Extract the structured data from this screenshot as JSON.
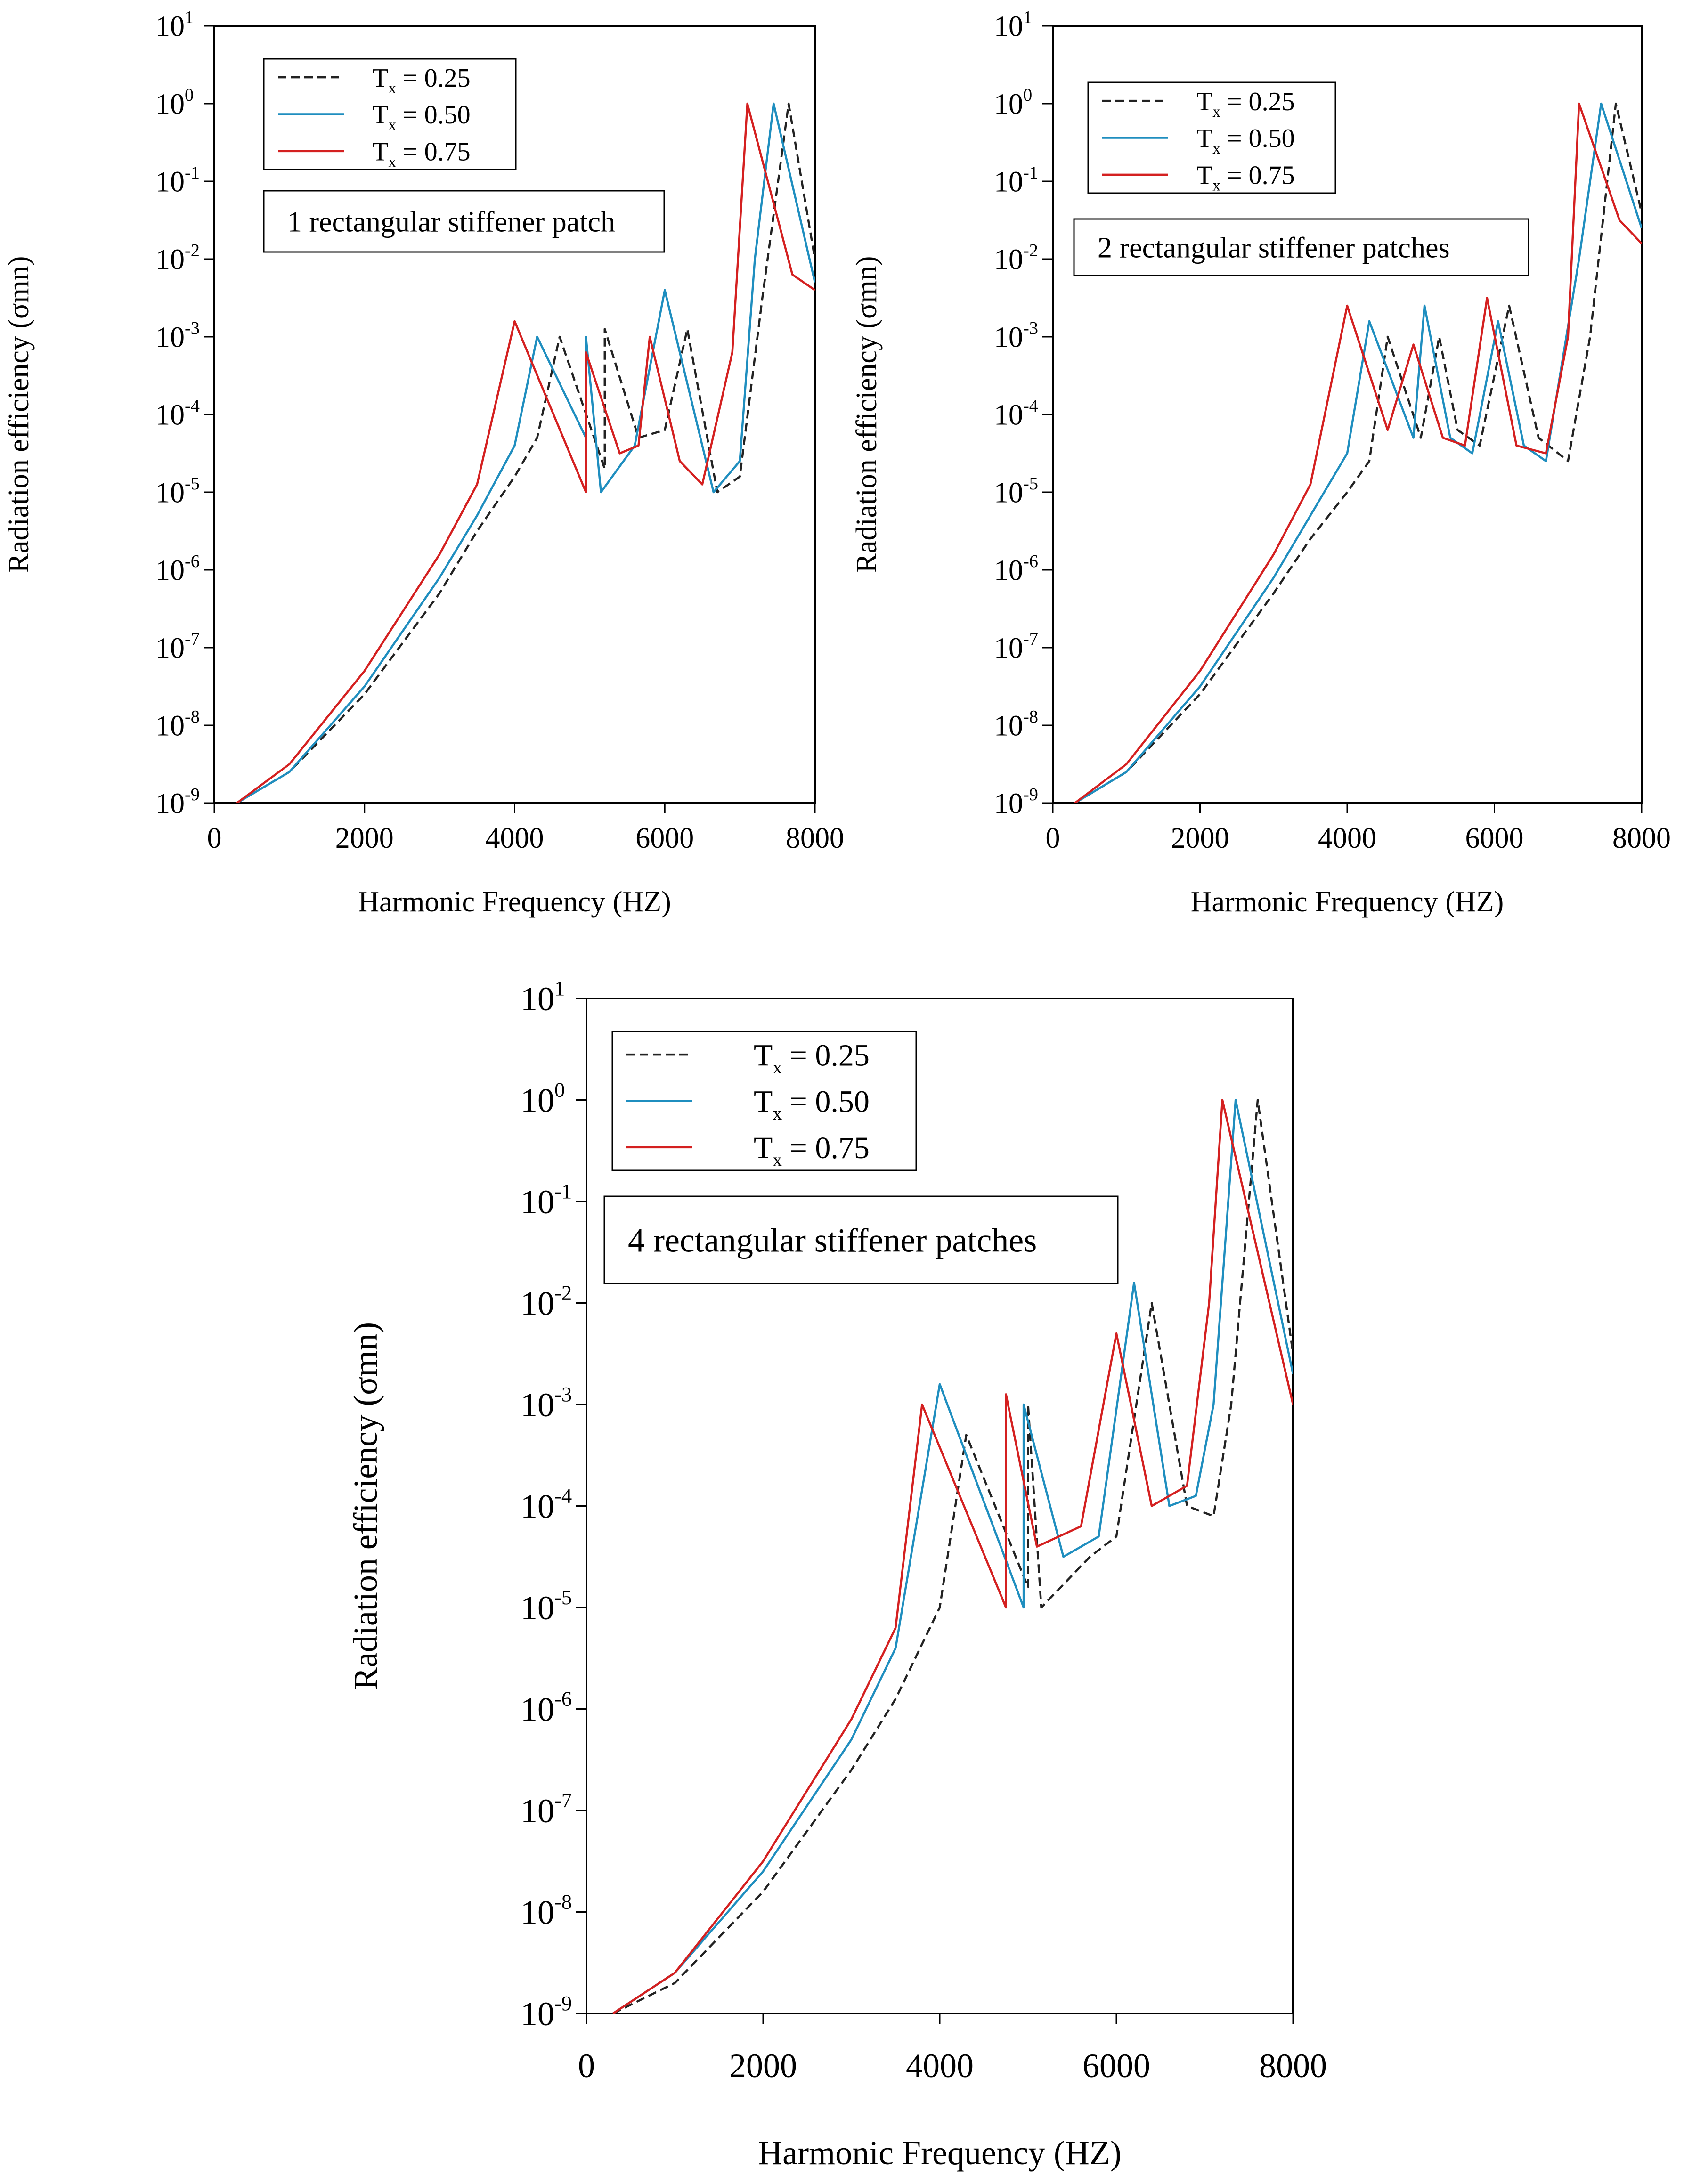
{
  "chart_data": [
    {
      "type": "line",
      "panel": "top-left",
      "annotation": "1 rectangular stiffener patch",
      "xlabel": "Harmonic Frequency (HZ)",
      "ylabel": "Radiation efficiency (σmn)",
      "xlim": [
        0,
        8000
      ],
      "ylim_exp": [
        -9,
        1
      ],
      "yscale": "log10",
      "x_ticks": [
        "0",
        "2000",
        "4000",
        "6000",
        "8000"
      ],
      "y_tick_exps": [
        1,
        0,
        -1,
        -2,
        -3,
        -4,
        -5,
        -6,
        -7,
        -8,
        -9
      ],
      "legend_position": "top-left",
      "series": [
        {
          "name": "Tx = 0.25",
          "label_prefix": "T",
          "label_sub": "x",
          "label_suffix": " = 0.25",
          "color": "#222222",
          "dash": true,
          "points": [
            [
              300,
              -9
            ],
            [
              1000,
              -8.6
            ],
            [
              2000,
              -7.6
            ],
            [
              3000,
              -6.3
            ],
            [
              3500,
              -5.5
            ],
            [
              4000,
              -4.8
            ],
            [
              4300,
              -4.3
            ],
            [
              4600,
              -3.0
            ],
            [
              5200,
              -4.7
            ],
            [
              5200,
              -2.9
            ],
            [
              5650,
              -4.3
            ],
            [
              6000,
              -4.2
            ],
            [
              6300,
              -2.9
            ],
            [
              6700,
              -5.0
            ],
            [
              7000,
              -4.8
            ],
            [
              7300,
              -2.5
            ],
            [
              7650,
              0
            ],
            [
              8000,
              -2.0
            ]
          ]
        },
        {
          "name": "Tx = 0.50",
          "label_prefix": "T",
          "label_sub": "x",
          "label_suffix": " = 0.50",
          "color": "#1f8ebf",
          "dash": false,
          "points": [
            [
              300,
              -9
            ],
            [
              1000,
              -8.6
            ],
            [
              2000,
              -7.5
            ],
            [
              3000,
              -6.1
            ],
            [
              3500,
              -5.3
            ],
            [
              4000,
              -4.4
            ],
            [
              4300,
              -3.0
            ],
            [
              4950,
              -4.3
            ],
            [
              4950,
              -3.0
            ],
            [
              5150,
              -5.0
            ],
            [
              5600,
              -4.4
            ],
            [
              6000,
              -2.4
            ],
            [
              6650,
              -5.0
            ],
            [
              7000,
              -4.6
            ],
            [
              7200,
              -2.0
            ],
            [
              7450,
              0
            ],
            [
              8000,
              -2.3
            ]
          ]
        },
        {
          "name": "Tx = 0.75",
          "label_prefix": "T",
          "label_sub": "x",
          "label_suffix": " = 0.75",
          "color": "#d42020",
          "dash": false,
          "points": [
            [
              300,
              -9
            ],
            [
              1000,
              -8.5
            ],
            [
              2000,
              -7.3
            ],
            [
              3000,
              -5.8
            ],
            [
              3500,
              -4.9
            ],
            [
              4000,
              -2.8
            ],
            [
              4950,
              -5.0
            ],
            [
              4950,
              -3.2
            ],
            [
              5400,
              -4.5
            ],
            [
              5650,
              -4.4
            ],
            [
              5800,
              -3.0
            ],
            [
              6200,
              -4.6
            ],
            [
              6500,
              -4.9
            ],
            [
              6900,
              -3.2
            ],
            [
              7100,
              0
            ],
            [
              7700,
              -2.2
            ],
            [
              8000,
              -2.4
            ]
          ]
        }
      ]
    },
    {
      "type": "line",
      "panel": "top-right",
      "annotation": "2 rectangular stiffener patches",
      "xlabel": "Harmonic Frequency (HZ)",
      "ylabel": "Radiation efficiency (σmn)",
      "xlim": [
        0,
        8000
      ],
      "ylim_exp": [
        -9,
        1
      ],
      "yscale": "log10",
      "x_ticks": [
        "0",
        "2000",
        "4000",
        "6000",
        "8000"
      ],
      "y_tick_exps": [
        1,
        0,
        -1,
        -2,
        -3,
        -4,
        -5,
        -6,
        -7,
        -8,
        -9
      ],
      "legend_position": "top-left",
      "series": [
        {
          "name": "Tx = 0.25",
          "label_prefix": "T",
          "label_sub": "x",
          "label_suffix": " = 0.25",
          "color": "#222222",
          "dash": true,
          "points": [
            [
              300,
              -9
            ],
            [
              1000,
              -8.6
            ],
            [
              2000,
              -7.6
            ],
            [
              3000,
              -6.3
            ],
            [
              3500,
              -5.6
            ],
            [
              4000,
              -5.0
            ],
            [
              4300,
              -4.6
            ],
            [
              4550,
              -3.0
            ],
            [
              5000,
              -4.3
            ],
            [
              5250,
              -3.0
            ],
            [
              5500,
              -4.2
            ],
            [
              5800,
              -4.4
            ],
            [
              6200,
              -2.6
            ],
            [
              6600,
              -4.3
            ],
            [
              7000,
              -4.6
            ],
            [
              7300,
              -3.0
            ],
            [
              7650,
              0
            ],
            [
              8000,
              -1.4
            ]
          ]
        },
        {
          "name": "Tx = 0.50",
          "label_prefix": "T",
          "label_sub": "x",
          "label_suffix": " = 0.50",
          "color": "#1f8ebf",
          "dash": false,
          "points": [
            [
              300,
              -9
            ],
            [
              1000,
              -8.6
            ],
            [
              2000,
              -7.5
            ],
            [
              3000,
              -6.1
            ],
            [
              3500,
              -5.3
            ],
            [
              4000,
              -4.5
            ],
            [
              4300,
              -2.8
            ],
            [
              4900,
              -4.3
            ],
            [
              5050,
              -2.6
            ],
            [
              5400,
              -4.3
            ],
            [
              5700,
              -4.5
            ],
            [
              6050,
              -2.8
            ],
            [
              6400,
              -4.4
            ],
            [
              6700,
              -4.6
            ],
            [
              7150,
              -2.0
            ],
            [
              7450,
              0
            ],
            [
              8000,
              -1.6
            ]
          ]
        },
        {
          "name": "Tx = 0.75",
          "label_prefix": "T",
          "label_sub": "x",
          "label_suffix": " = 0.75",
          "color": "#d42020",
          "dash": false,
          "points": [
            [
              300,
              -9
            ],
            [
              1000,
              -8.5
            ],
            [
              2000,
              -7.3
            ],
            [
              3000,
              -5.8
            ],
            [
              3500,
              -4.9
            ],
            [
              4000,
              -2.6
            ],
            [
              4550,
              -4.2
            ],
            [
              4900,
              -3.1
            ],
            [
              5300,
              -4.3
            ],
            [
              5600,
              -4.4
            ],
            [
              5900,
              -2.5
            ],
            [
              6300,
              -4.4
            ],
            [
              6700,
              -4.5
            ],
            [
              7000,
              -3.0
            ],
            [
              7150,
              0
            ],
            [
              7700,
              -1.5
            ],
            [
              8000,
              -1.8
            ]
          ]
        }
      ]
    },
    {
      "type": "line",
      "panel": "bottom",
      "annotation": "4 rectangular stiffener patches",
      "xlabel": "Harmonic Frequency (HZ)",
      "ylabel": "Radiation efficiency (σmn)",
      "xlim": [
        0,
        8000
      ],
      "ylim_exp": [
        -9,
        1
      ],
      "yscale": "log10",
      "x_ticks": [
        "0",
        "2000",
        "4000",
        "6000",
        "8000"
      ],
      "y_tick_exps": [
        1,
        0,
        -1,
        -2,
        -3,
        -4,
        -5,
        -6,
        -7,
        -8,
        -9
      ],
      "legend_position": "top-left",
      "series": [
        {
          "name": "Tx = 0.25",
          "label_prefix": "T",
          "label_sub": "x",
          "label_suffix": " = 0.25",
          "color": "#222222",
          "dash": true,
          "points": [
            [
              300,
              -9
            ],
            [
              1000,
              -8.7
            ],
            [
              2000,
              -7.8
            ],
            [
              3000,
              -6.6
            ],
            [
              3500,
              -5.9
            ],
            [
              4000,
              -5.0
            ],
            [
              4300,
              -3.3
            ],
            [
              5000,
              -4.8
            ],
            [
              5000,
              -3.0
            ],
            [
              5150,
              -5.0
            ],
            [
              5700,
              -4.5
            ],
            [
              6000,
              -4.3
            ],
            [
              6400,
              -2.0
            ],
            [
              6800,
              -4.0
            ],
            [
              7100,
              -4.1
            ],
            [
              7300,
              -3.0
            ],
            [
              7600,
              0
            ],
            [
              8000,
              -2.5
            ]
          ]
        },
        {
          "name": "Tx = 0.50",
          "label_prefix": "T",
          "label_sub": "x",
          "label_suffix": " = 0.50",
          "color": "#1f8ebf",
          "dash": false,
          "points": [
            [
              300,
              -9
            ],
            [
              1000,
              -8.6
            ],
            [
              2000,
              -7.6
            ],
            [
              3000,
              -6.3
            ],
            [
              3500,
              -5.4
            ],
            [
              4000,
              -2.8
            ],
            [
              4950,
              -5.0
            ],
            [
              4950,
              -3.0
            ],
            [
              5400,
              -4.5
            ],
            [
              5800,
              -4.3
            ],
            [
              6200,
              -1.8
            ],
            [
              6600,
              -4.0
            ],
            [
              6900,
              -3.9
            ],
            [
              7100,
              -3.0
            ],
            [
              7350,
              0
            ],
            [
              8000,
              -2.7
            ]
          ]
        },
        {
          "name": "Tx = 0.75",
          "label_prefix": "T",
          "label_sub": "x",
          "label_suffix": " = 0.75",
          "color": "#d42020",
          "dash": false,
          "points": [
            [
              300,
              -9
            ],
            [
              1000,
              -8.6
            ],
            [
              2000,
              -7.5
            ],
            [
              3000,
              -6.1
            ],
            [
              3500,
              -5.2
            ],
            [
              3800,
              -3.0
            ],
            [
              4750,
              -5.0
            ],
            [
              4750,
              -2.9
            ],
            [
              5100,
              -4.4
            ],
            [
              5600,
              -4.2
            ],
            [
              6000,
              -2.3
            ],
            [
              6400,
              -4.0
            ],
            [
              6800,
              -3.8
            ],
            [
              7050,
              -2.0
            ],
            [
              7200,
              0
            ],
            [
              8000,
              -3.0
            ]
          ]
        }
      ]
    }
  ]
}
